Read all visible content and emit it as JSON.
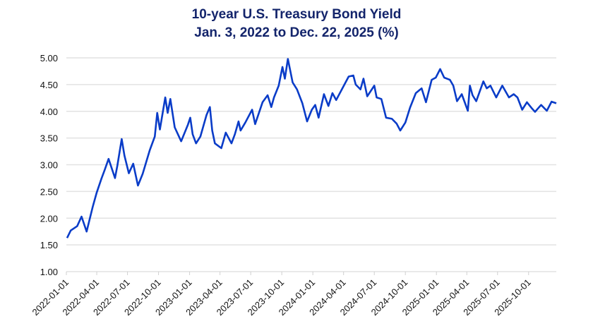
{
  "chart_data": {
    "type": "line",
    "title": "10-year U.S. Treasury Bond Yield",
    "subtitle": "Jan. 3, 2022 to Dec. 22, 2025 (%)",
    "xlabel": "",
    "ylabel": "",
    "xlim": [
      "2022-01-01",
      "2025-12-22"
    ],
    "ylim": [
      1.0,
      5.0
    ],
    "y_ticks": [
      "1.00",
      "1.50",
      "2.00",
      "2.50",
      "3.00",
      "3.50",
      "4.00",
      "4.50",
      "5.00"
    ],
    "x_ticks": [
      "2022-01-01",
      "2022-04-01",
      "2022-07-01",
      "2022-10-01",
      "2023-01-01",
      "2023-04-01",
      "2023-07-01",
      "2023-10-01",
      "2024-01-01",
      "2024-04-01",
      "2024-07-01",
      "2024-10-01",
      "2025-01-01",
      "2025-04-01",
      "2025-07-01",
      "2025-10-01"
    ],
    "grid": "horizontal",
    "line_color": "#0a3cc8",
    "title_color": "#13246b",
    "series": [
      {
        "points": [
          [
            "2022-01-03",
            1.63
          ],
          [
            "2022-01-14",
            1.77
          ],
          [
            "2022-02-02",
            1.85
          ],
          [
            "2022-02-15",
            2.03
          ],
          [
            "2022-03-02",
            1.75
          ],
          [
            "2022-03-20",
            2.21
          ],
          [
            "2022-04-01",
            2.48
          ],
          [
            "2022-04-15",
            2.74
          ],
          [
            "2022-04-25",
            2.91
          ],
          [
            "2022-05-06",
            3.11
          ],
          [
            "2022-05-25",
            2.75
          ],
          [
            "2022-06-01",
            2.98
          ],
          [
            "2022-06-14",
            3.48
          ],
          [
            "2022-06-22",
            3.17
          ],
          [
            "2022-07-05",
            2.84
          ],
          [
            "2022-07-18",
            3.02
          ],
          [
            "2022-08-01",
            2.61
          ],
          [
            "2022-08-15",
            2.83
          ],
          [
            "2022-09-05",
            3.27
          ],
          [
            "2022-09-20",
            3.53
          ],
          [
            "2022-09-27",
            3.97
          ],
          [
            "2022-10-05",
            3.66
          ],
          [
            "2022-10-21",
            4.26
          ],
          [
            "2022-10-28",
            3.97
          ],
          [
            "2022-11-05",
            4.23
          ],
          [
            "2022-11-18",
            3.7
          ],
          [
            "2022-12-07",
            3.44
          ],
          [
            "2022-12-27",
            3.75
          ],
          [
            "2023-01-03",
            3.88
          ],
          [
            "2023-01-10",
            3.57
          ],
          [
            "2023-01-20",
            3.4
          ],
          [
            "2023-02-02",
            3.53
          ],
          [
            "2023-02-20",
            3.93
          ],
          [
            "2023-03-02",
            4.08
          ],
          [
            "2023-03-09",
            3.64
          ],
          [
            "2023-03-17",
            3.4
          ],
          [
            "2023-04-05",
            3.31
          ],
          [
            "2023-04-18",
            3.6
          ],
          [
            "2023-05-05",
            3.4
          ],
          [
            "2023-05-15",
            3.57
          ],
          [
            "2023-05-26",
            3.81
          ],
          [
            "2023-06-01",
            3.64
          ],
          [
            "2023-06-15",
            3.79
          ],
          [
            "2023-07-05",
            4.03
          ],
          [
            "2023-07-14",
            3.76
          ],
          [
            "2023-08-05",
            4.17
          ],
          [
            "2023-08-20",
            4.3
          ],
          [
            "2023-08-31",
            4.08
          ],
          [
            "2023-09-08",
            4.26
          ],
          [
            "2023-09-22",
            4.48
          ],
          [
            "2023-10-03",
            4.83
          ],
          [
            "2023-10-10",
            4.61
          ],
          [
            "2023-10-19",
            4.98
          ],
          [
            "2023-11-02",
            4.54
          ],
          [
            "2023-11-15",
            4.41
          ],
          [
            "2023-12-01",
            4.15
          ],
          [
            "2023-12-15",
            3.81
          ],
          [
            "2023-12-29",
            4.03
          ],
          [
            "2024-01-08",
            4.12
          ],
          [
            "2024-01-18",
            3.88
          ],
          [
            "2024-02-03",
            4.32
          ],
          [
            "2024-02-16",
            4.1
          ],
          [
            "2024-02-28",
            4.34
          ],
          [
            "2024-03-10",
            4.21
          ],
          [
            "2024-04-16",
            4.65
          ],
          [
            "2024-04-30",
            4.67
          ],
          [
            "2024-05-07",
            4.5
          ],
          [
            "2024-05-21",
            4.41
          ],
          [
            "2024-05-30",
            4.61
          ],
          [
            "2024-06-10",
            4.28
          ],
          [
            "2024-07-01",
            4.48
          ],
          [
            "2024-07-08",
            4.26
          ],
          [
            "2024-07-22",
            4.23
          ],
          [
            "2024-08-05",
            3.88
          ],
          [
            "2024-08-22",
            3.86
          ],
          [
            "2024-09-05",
            3.77
          ],
          [
            "2024-09-16",
            3.64
          ],
          [
            "2024-10-01",
            3.79
          ],
          [
            "2024-10-15",
            4.07
          ],
          [
            "2024-11-01",
            4.34
          ],
          [
            "2024-11-18",
            4.43
          ],
          [
            "2024-12-01",
            4.17
          ],
          [
            "2024-12-18",
            4.59
          ],
          [
            "2024-12-30",
            4.63
          ],
          [
            "2025-01-12",
            4.79
          ],
          [
            "2025-01-24",
            4.63
          ],
          [
            "2025-02-10",
            4.59
          ],
          [
            "2025-02-20",
            4.48
          ],
          [
            "2025-03-03",
            4.19
          ],
          [
            "2025-03-17",
            4.32
          ],
          [
            "2025-04-04",
            4.01
          ],
          [
            "2025-04-10",
            4.48
          ],
          [
            "2025-04-18",
            4.3
          ],
          [
            "2025-04-29",
            4.19
          ],
          [
            "2025-05-20",
            4.56
          ],
          [
            "2025-05-30",
            4.43
          ],
          [
            "2025-06-10",
            4.48
          ],
          [
            "2025-06-27",
            4.26
          ],
          [
            "2025-07-15",
            4.48
          ],
          [
            "2025-08-04",
            4.26
          ],
          [
            "2025-08-18",
            4.32
          ],
          [
            "2025-08-29",
            4.26
          ],
          [
            "2025-09-12",
            4.03
          ],
          [
            "2025-09-26",
            4.17
          ],
          [
            "2025-10-10",
            4.06
          ],
          [
            "2025-10-20",
            3.99
          ],
          [
            "2025-11-07",
            4.12
          ],
          [
            "2025-11-24",
            4.01
          ],
          [
            "2025-12-08",
            4.18
          ],
          [
            "2025-12-22",
            4.15
          ]
        ]
      }
    ]
  }
}
